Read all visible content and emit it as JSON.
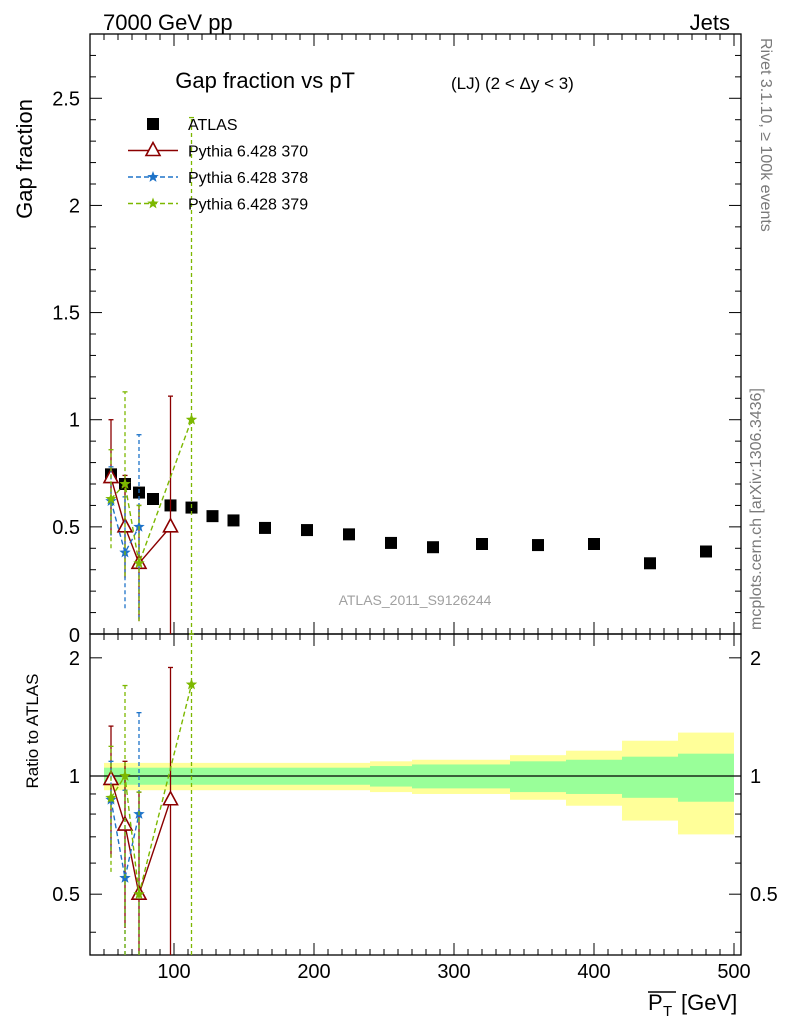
{
  "header": {
    "left": "7000 GeV pp",
    "right": "Jets"
  },
  "side_labels": {
    "rivet": "Rivet 3.1.10, ≥ 100k events",
    "mcplots": "mcplots.cern.ch [arXiv:1306.3436]"
  },
  "chart_data": [
    {
      "type": "scatter",
      "title": "Gap fraction vs pT",
      "title_suffix": "(LJ)  (2 < Δy < 3)",
      "analysis_id": "ATLAS_2011_S9126244",
      "xlabel": "P_T [GeV]",
      "ylabel": "Gap fraction",
      "xlim": [
        40,
        505
      ],
      "ylim": [
        0,
        2.8
      ],
      "x_ticks": [
        100,
        200,
        300,
        400,
        500
      ],
      "y_ticks": [
        0.5,
        1,
        1.5,
        2,
        2.5
      ],
      "y_tick_labels": [
        "0.5",
        "1",
        "1.5",
        "2",
        "2.5"
      ],
      "y_bottom_label": "0",
      "legend_position": "top-left",
      "series": [
        {
          "name": "ATLAS",
          "color": "#000000",
          "marker": "square",
          "x": [
            55,
            65,
            75,
            85,
            97.5,
            112.5,
            127.5,
            142.5,
            165,
            195,
            225,
            255,
            285,
            320,
            360,
            400,
            440,
            480
          ],
          "y": [
            0.745,
            0.7,
            0.66,
            0.63,
            0.6,
            0.59,
            0.55,
            0.53,
            0.495,
            0.485,
            0.465,
            0.425,
            0.405,
            0.42,
            0.415,
            0.42,
            0.33,
            0.385
          ]
        },
        {
          "name": "Pythia 6.428 370",
          "color": "#8b0000",
          "marker": "triangle",
          "line": "solid",
          "x": [
            55,
            65,
            75,
            97.5
          ],
          "y": [
            0.73,
            0.5,
            0.33,
            0.5
          ],
          "err": [
            0.27,
            0.24,
            0.27,
            0.61
          ]
        },
        {
          "name": "Pythia 6.428 378",
          "color": "#1e73c8",
          "marker": "star",
          "line": "dashed",
          "x": [
            55,
            65,
            75
          ],
          "y": [
            0.62,
            0.38,
            0.5
          ],
          "err": [
            0.16,
            0.26,
            0.43
          ]
        },
        {
          "name": "Pythia 6.428 379",
          "color": "#7cb800",
          "marker": "star",
          "line": "dashed",
          "x": [
            55,
            65,
            75,
            112.5
          ],
          "y": [
            0.63,
            0.7,
            0.33,
            1.0
          ],
          "err": [
            0.23,
            0.43,
            0.27,
            1.41
          ]
        }
      ]
    },
    {
      "type": "scatter",
      "ylabel": "Ratio to ATLAS",
      "xlabel": "P_T [GeV]",
      "xlim": [
        40,
        505
      ],
      "ylim": [
        0.35,
        2.3
      ],
      "y_ticks": [
        0.5,
        1,
        2
      ],
      "y_tick_labels": [
        "0.5",
        "1",
        "2"
      ],
      "reference_line": 1,
      "bands": {
        "edges": [
          50,
          60,
          70,
          80,
          90,
          105,
          120,
          135,
          150,
          180,
          210,
          240,
          270,
          300,
          340,
          380,
          420,
          460,
          500
        ],
        "inner": [
          [
            0.95,
            1.05
          ],
          [
            0.95,
            1.05
          ],
          [
            0.95,
            1.05
          ],
          [
            0.95,
            1.05
          ],
          [
            0.95,
            1.05
          ],
          [
            0.95,
            1.05
          ],
          [
            0.95,
            1.05
          ],
          [
            0.95,
            1.05
          ],
          [
            0.95,
            1.05
          ],
          [
            0.95,
            1.05
          ],
          [
            0.95,
            1.05
          ],
          [
            0.94,
            1.06
          ],
          [
            0.93,
            1.07
          ],
          [
            0.93,
            1.07
          ],
          [
            0.91,
            1.09
          ],
          [
            0.9,
            1.1
          ],
          [
            0.88,
            1.12
          ],
          [
            0.86,
            1.14
          ]
        ],
        "outer": [
          [
            0.92,
            1.08
          ],
          [
            0.92,
            1.08
          ],
          [
            0.92,
            1.08
          ],
          [
            0.92,
            1.08
          ],
          [
            0.92,
            1.08
          ],
          [
            0.92,
            1.08
          ],
          [
            0.92,
            1.08
          ],
          [
            0.92,
            1.08
          ],
          [
            0.92,
            1.08
          ],
          [
            0.92,
            1.08
          ],
          [
            0.92,
            1.08
          ],
          [
            0.91,
            1.09
          ],
          [
            0.9,
            1.1
          ],
          [
            0.9,
            1.1
          ],
          [
            0.87,
            1.13
          ],
          [
            0.84,
            1.16
          ],
          [
            0.77,
            1.23
          ],
          [
            0.71,
            1.29
          ]
        ],
        "inner_color": "#99ff99",
        "outer_color": "#ffff99"
      },
      "series": [
        {
          "name": "Pythia 6.428 370",
          "color": "#8b0000",
          "marker": "triangle",
          "line": "solid",
          "x": [
            55,
            65,
            75,
            97.5
          ],
          "y": [
            0.98,
            0.75,
            0.5,
            0.87
          ],
          "err": [
            0.36,
            0.34,
            0.41,
            1.02
          ]
        },
        {
          "name": "Pythia 6.428 378",
          "color": "#1e73c8",
          "marker": "star",
          "line": "dashed",
          "x": [
            55,
            65,
            75
          ],
          "y": [
            0.87,
            0.55,
            0.8
          ],
          "err": [
            0.22,
            0.37,
            0.65
          ]
        },
        {
          "name": "Pythia 6.428 379",
          "color": "#7cb800",
          "marker": "star",
          "line": "dashed",
          "x": [
            55,
            65,
            75,
            112.5
          ],
          "y": [
            0.88,
            1.0,
            0.5,
            1.71
          ],
          "err": [
            0.31,
            0.7,
            0.41,
            2.4
          ]
        }
      ]
    }
  ]
}
